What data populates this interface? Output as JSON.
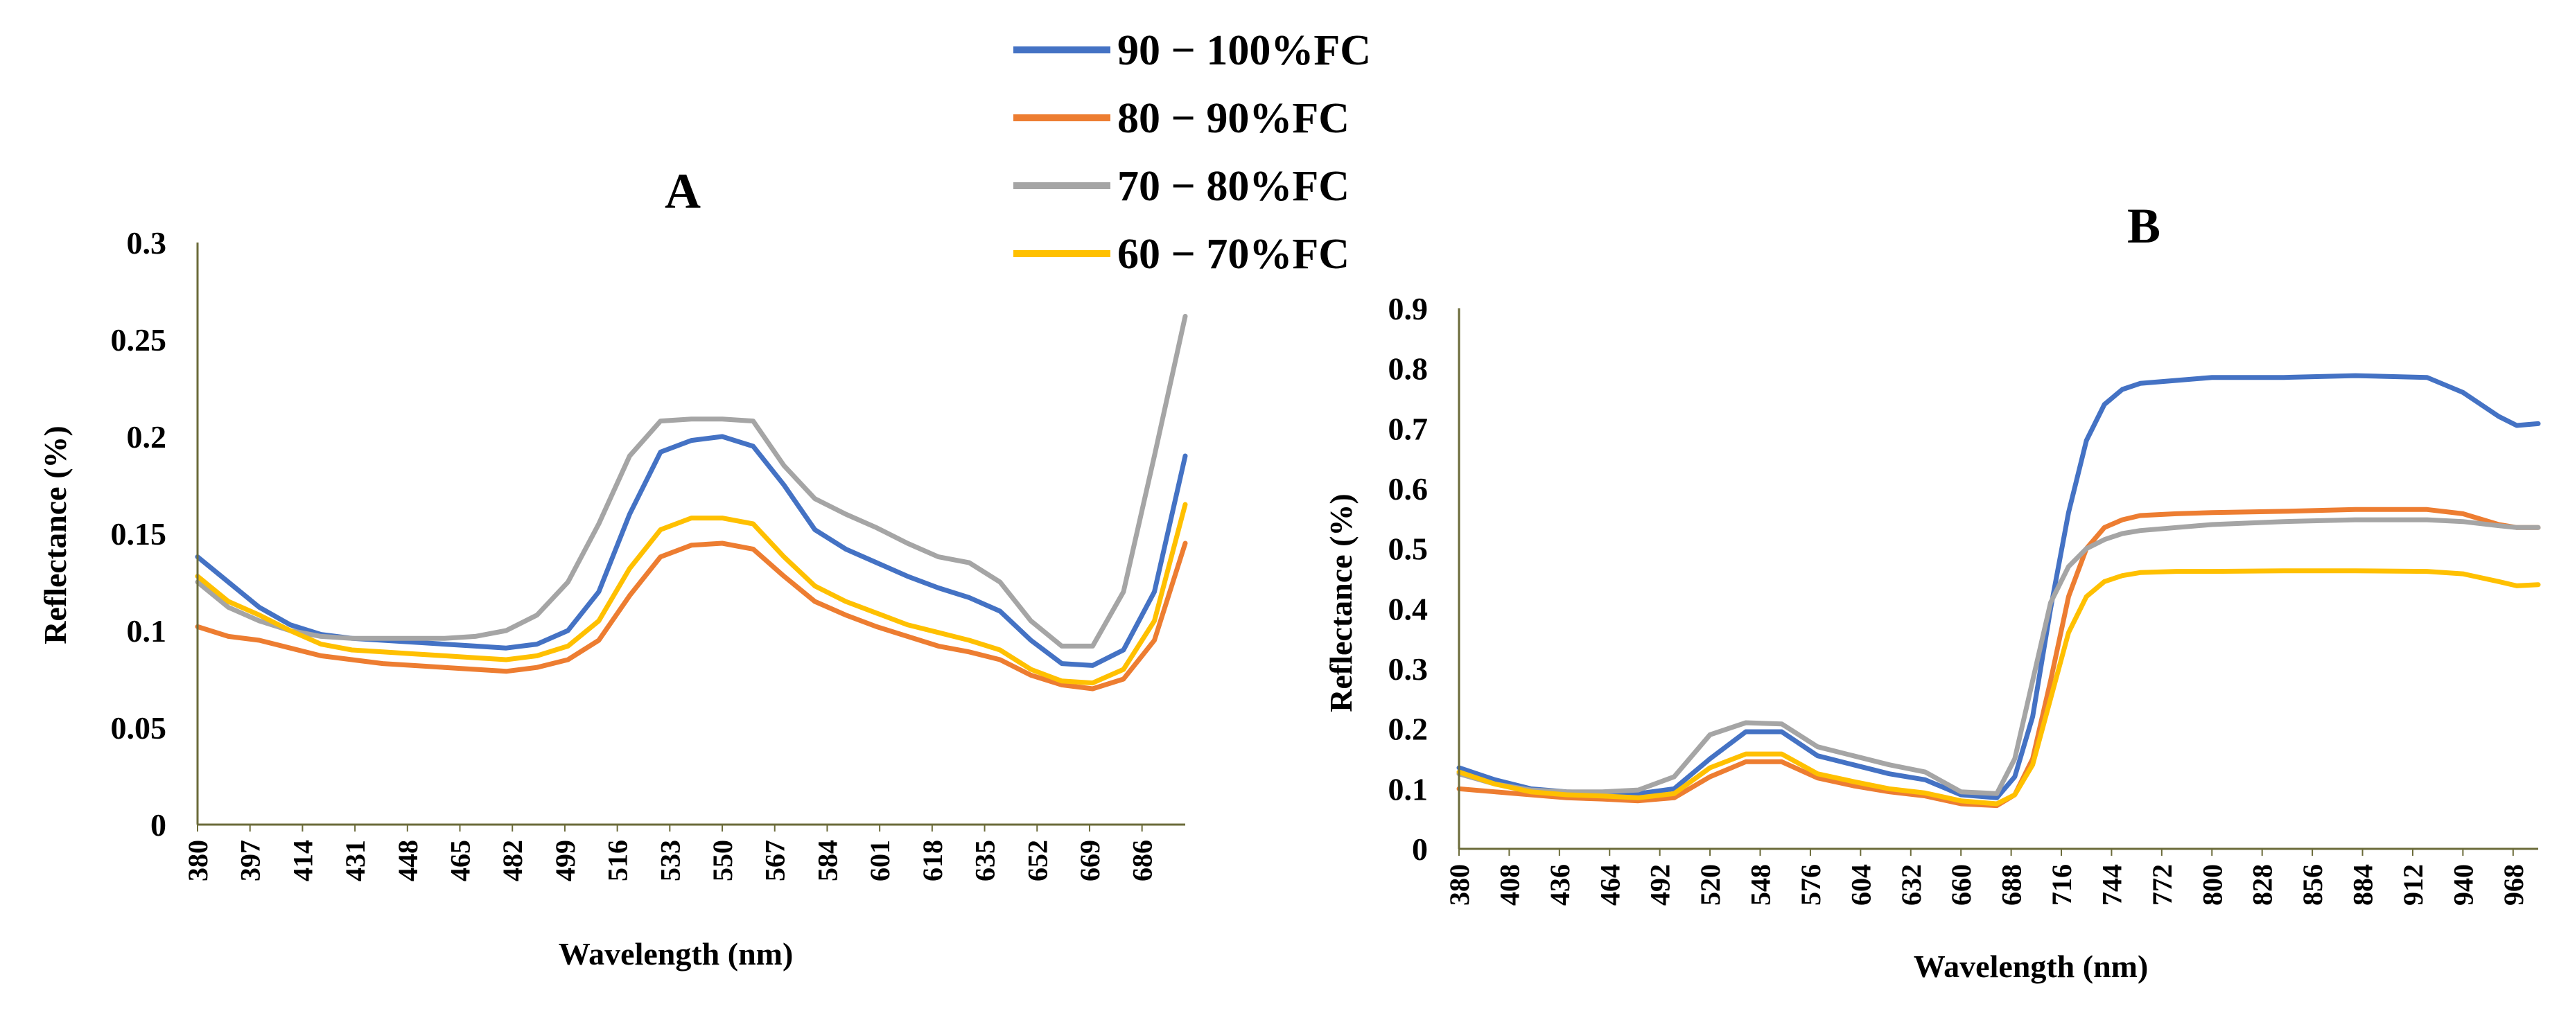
{
  "legend": {
    "items": [
      {
        "label": "90 − 100%FC",
        "color": "#4472C4"
      },
      {
        "label": "80 − 90%FC",
        "color": "#ED7D31"
      },
      {
        "label": "70 − 80%FC",
        "color": "#A5A5A5"
      },
      {
        "label": "60 − 70%FC",
        "color": "#FFC000"
      }
    ]
  },
  "chart_data": [
    {
      "id": "A",
      "type": "line",
      "title": "A",
      "xlabel": "Wavelength (nm)",
      "ylabel": "Reflectance (%)",
      "xlim": [
        380,
        700
      ],
      "ylim": [
        0,
        0.3
      ],
      "yticks": [
        0,
        0.05,
        0.1,
        0.15,
        0.2,
        0.25,
        0.3
      ],
      "ytick_labels": [
        "0",
        "0.05",
        "0.1",
        "0.15",
        "0.2",
        "0.25",
        "0.3"
      ],
      "xticks": [
        380,
        397,
        414,
        431,
        448,
        465,
        482,
        499,
        516,
        533,
        550,
        567,
        584,
        601,
        618,
        635,
        652,
        669,
        686
      ],
      "xtick_labels": [
        "380",
        "397",
        "414",
        "431",
        "448",
        "465",
        "482",
        "499",
        "516",
        "533",
        "550",
        "567",
        "584",
        "601",
        "618",
        "635",
        "652",
        "669",
        "686"
      ],
      "series": [
        {
          "name": "90 − 100%FC",
          "color": "#4472C4",
          "x": [
            380,
            390,
            400,
            410,
            420,
            430,
            440,
            450,
            460,
            470,
            480,
            490,
            500,
            510,
            520,
            530,
            540,
            550,
            560,
            570,
            580,
            590,
            600,
            610,
            620,
            630,
            640,
            650,
            660,
            670,
            680,
            690,
            700
          ],
          "y": [
            0.138,
            0.125,
            0.112,
            0.103,
            0.098,
            0.096,
            0.095,
            0.094,
            0.093,
            0.092,
            0.091,
            0.093,
            0.1,
            0.12,
            0.16,
            0.192,
            0.198,
            0.2,
            0.195,
            0.175,
            0.152,
            0.142,
            0.135,
            0.128,
            0.122,
            0.117,
            0.11,
            0.095,
            0.083,
            0.082,
            0.09,
            0.12,
            0.19
          ]
        },
        {
          "name": "80 − 90%FC",
          "color": "#ED7D31",
          "x": [
            380,
            390,
            400,
            410,
            420,
            430,
            440,
            450,
            460,
            470,
            480,
            490,
            500,
            510,
            520,
            530,
            540,
            550,
            560,
            570,
            580,
            590,
            600,
            610,
            620,
            630,
            640,
            650,
            660,
            670,
            680,
            690,
            700
          ],
          "y": [
            0.102,
            0.097,
            0.095,
            0.091,
            0.087,
            0.085,
            0.083,
            0.082,
            0.081,
            0.08,
            0.079,
            0.081,
            0.085,
            0.095,
            0.118,
            0.138,
            0.144,
            0.145,
            0.142,
            0.128,
            0.115,
            0.108,
            0.102,
            0.097,
            0.092,
            0.089,
            0.085,
            0.077,
            0.072,
            0.07,
            0.075,
            0.095,
            0.145
          ]
        },
        {
          "name": "70 − 80%FC",
          "color": "#A5A5A5",
          "x": [
            380,
            390,
            400,
            410,
            420,
            430,
            440,
            450,
            460,
            470,
            480,
            490,
            500,
            510,
            520,
            530,
            540,
            550,
            560,
            570,
            580,
            590,
            600,
            610,
            620,
            630,
            640,
            650,
            660,
            670,
            680,
            690,
            700
          ],
          "y": [
            0.125,
            0.112,
            0.105,
            0.1,
            0.097,
            0.096,
            0.096,
            0.096,
            0.096,
            0.097,
            0.1,
            0.108,
            0.125,
            0.155,
            0.19,
            0.208,
            0.209,
            0.209,
            0.208,
            0.185,
            0.168,
            0.16,
            0.153,
            0.145,
            0.138,
            0.135,
            0.125,
            0.105,
            0.092,
            0.092,
            0.12,
            0.19,
            0.262
          ]
        },
        {
          "name": "60 − 70%FC",
          "color": "#FFC000",
          "x": [
            380,
            390,
            400,
            410,
            420,
            430,
            440,
            450,
            460,
            470,
            480,
            490,
            500,
            510,
            520,
            530,
            540,
            550,
            560,
            570,
            580,
            590,
            600,
            610,
            620,
            630,
            640,
            650,
            660,
            670,
            680,
            690,
            700
          ],
          "y": [
            0.128,
            0.115,
            0.108,
            0.1,
            0.093,
            0.09,
            0.089,
            0.088,
            0.087,
            0.086,
            0.085,
            0.087,
            0.092,
            0.105,
            0.132,
            0.152,
            0.158,
            0.158,
            0.155,
            0.138,
            0.123,
            0.115,
            0.109,
            0.103,
            0.099,
            0.095,
            0.09,
            0.08,
            0.074,
            0.073,
            0.08,
            0.105,
            0.165
          ]
        }
      ]
    },
    {
      "id": "B",
      "type": "line",
      "title": "B",
      "xlabel": "Wavelength (nm)",
      "ylabel": "Reflectance (%)",
      "xlim": [
        380,
        982
      ],
      "ylim": [
        0,
        0.9
      ],
      "yticks": [
        0,
        0.1,
        0.2,
        0.3,
        0.4,
        0.5,
        0.6,
        0.7,
        0.8,
        0.9
      ],
      "ytick_labels": [
        "0",
        "0.1",
        "0.2",
        "0.3",
        "0.4",
        "0.5",
        "0.6",
        "0.7",
        "0.8",
        "0.9"
      ],
      "xticks": [
        380,
        408,
        436,
        464,
        492,
        520,
        548,
        576,
        604,
        632,
        660,
        688,
        716,
        744,
        772,
        800,
        828,
        856,
        884,
        912,
        940,
        968
      ],
      "xtick_labels": [
        "380",
        "408",
        "436",
        "464",
        "492",
        "520",
        "548",
        "576",
        "604",
        "632",
        "660",
        "688",
        "716",
        "744",
        "772",
        "800",
        "828",
        "856",
        "884",
        "912",
        "940",
        "968"
      ],
      "series": [
        {
          "name": "90 − 100%FC",
          "color": "#4472C4",
          "x": [
            380,
            400,
            420,
            440,
            460,
            480,
            500,
            520,
            540,
            560,
            580,
            600,
            620,
            640,
            660,
            680,
            690,
            700,
            710,
            720,
            730,
            740,
            750,
            760,
            780,
            800,
            840,
            880,
            920,
            940,
            960,
            970,
            982
          ],
          "y": [
            0.135,
            0.115,
            0.1,
            0.095,
            0.093,
            0.092,
            0.1,
            0.15,
            0.195,
            0.195,
            0.155,
            0.14,
            0.125,
            0.115,
            0.09,
            0.085,
            0.12,
            0.22,
            0.4,
            0.56,
            0.68,
            0.74,
            0.765,
            0.775,
            0.78,
            0.785,
            0.785,
            0.788,
            0.785,
            0.76,
            0.72,
            0.705,
            0.708
          ]
        },
        {
          "name": "80 − 90%FC",
          "color": "#ED7D31",
          "x": [
            380,
            400,
            420,
            440,
            460,
            480,
            500,
            520,
            540,
            560,
            580,
            600,
            620,
            640,
            660,
            680,
            690,
            700,
            710,
            720,
            730,
            740,
            750,
            760,
            780,
            800,
            840,
            880,
            920,
            940,
            960,
            970,
            982
          ],
          "y": [
            0.1,
            0.095,
            0.09,
            0.085,
            0.083,
            0.08,
            0.085,
            0.12,
            0.145,
            0.145,
            0.118,
            0.105,
            0.095,
            0.088,
            0.075,
            0.072,
            0.09,
            0.15,
            0.28,
            0.42,
            0.5,
            0.535,
            0.548,
            0.555,
            0.558,
            0.56,
            0.562,
            0.565,
            0.565,
            0.558,
            0.54,
            0.535,
            0.535
          ]
        },
        {
          "name": "70 − 80%FC",
          "color": "#A5A5A5",
          "x": [
            380,
            400,
            420,
            440,
            460,
            480,
            500,
            520,
            540,
            560,
            580,
            600,
            620,
            640,
            660,
            680,
            690,
            700,
            710,
            720,
            730,
            740,
            750,
            760,
            780,
            800,
            840,
            880,
            920,
            940,
            960,
            970,
            982
          ],
          "y": [
            0.125,
            0.108,
            0.098,
            0.095,
            0.095,
            0.098,
            0.12,
            0.19,
            0.21,
            0.208,
            0.17,
            0.155,
            0.14,
            0.128,
            0.095,
            0.092,
            0.15,
            0.28,
            0.41,
            0.47,
            0.5,
            0.515,
            0.525,
            0.53,
            0.535,
            0.54,
            0.545,
            0.548,
            0.548,
            0.545,
            0.538,
            0.535,
            0.535
          ]
        },
        {
          "name": "60 − 70%FC",
          "color": "#FFC000",
          "x": [
            380,
            400,
            420,
            440,
            460,
            480,
            500,
            520,
            540,
            560,
            580,
            600,
            620,
            640,
            660,
            680,
            690,
            700,
            710,
            720,
            730,
            740,
            750,
            760,
            780,
            800,
            840,
            880,
            920,
            940,
            960,
            970,
            982
          ],
          "y": [
            0.128,
            0.108,
            0.095,
            0.09,
            0.088,
            0.085,
            0.092,
            0.135,
            0.158,
            0.158,
            0.125,
            0.112,
            0.1,
            0.093,
            0.08,
            0.075,
            0.09,
            0.14,
            0.25,
            0.36,
            0.42,
            0.445,
            0.455,
            0.46,
            0.462,
            0.462,
            0.463,
            0.463,
            0.462,
            0.458,
            0.445,
            0.438,
            0.44
          ]
        }
      ]
    }
  ]
}
